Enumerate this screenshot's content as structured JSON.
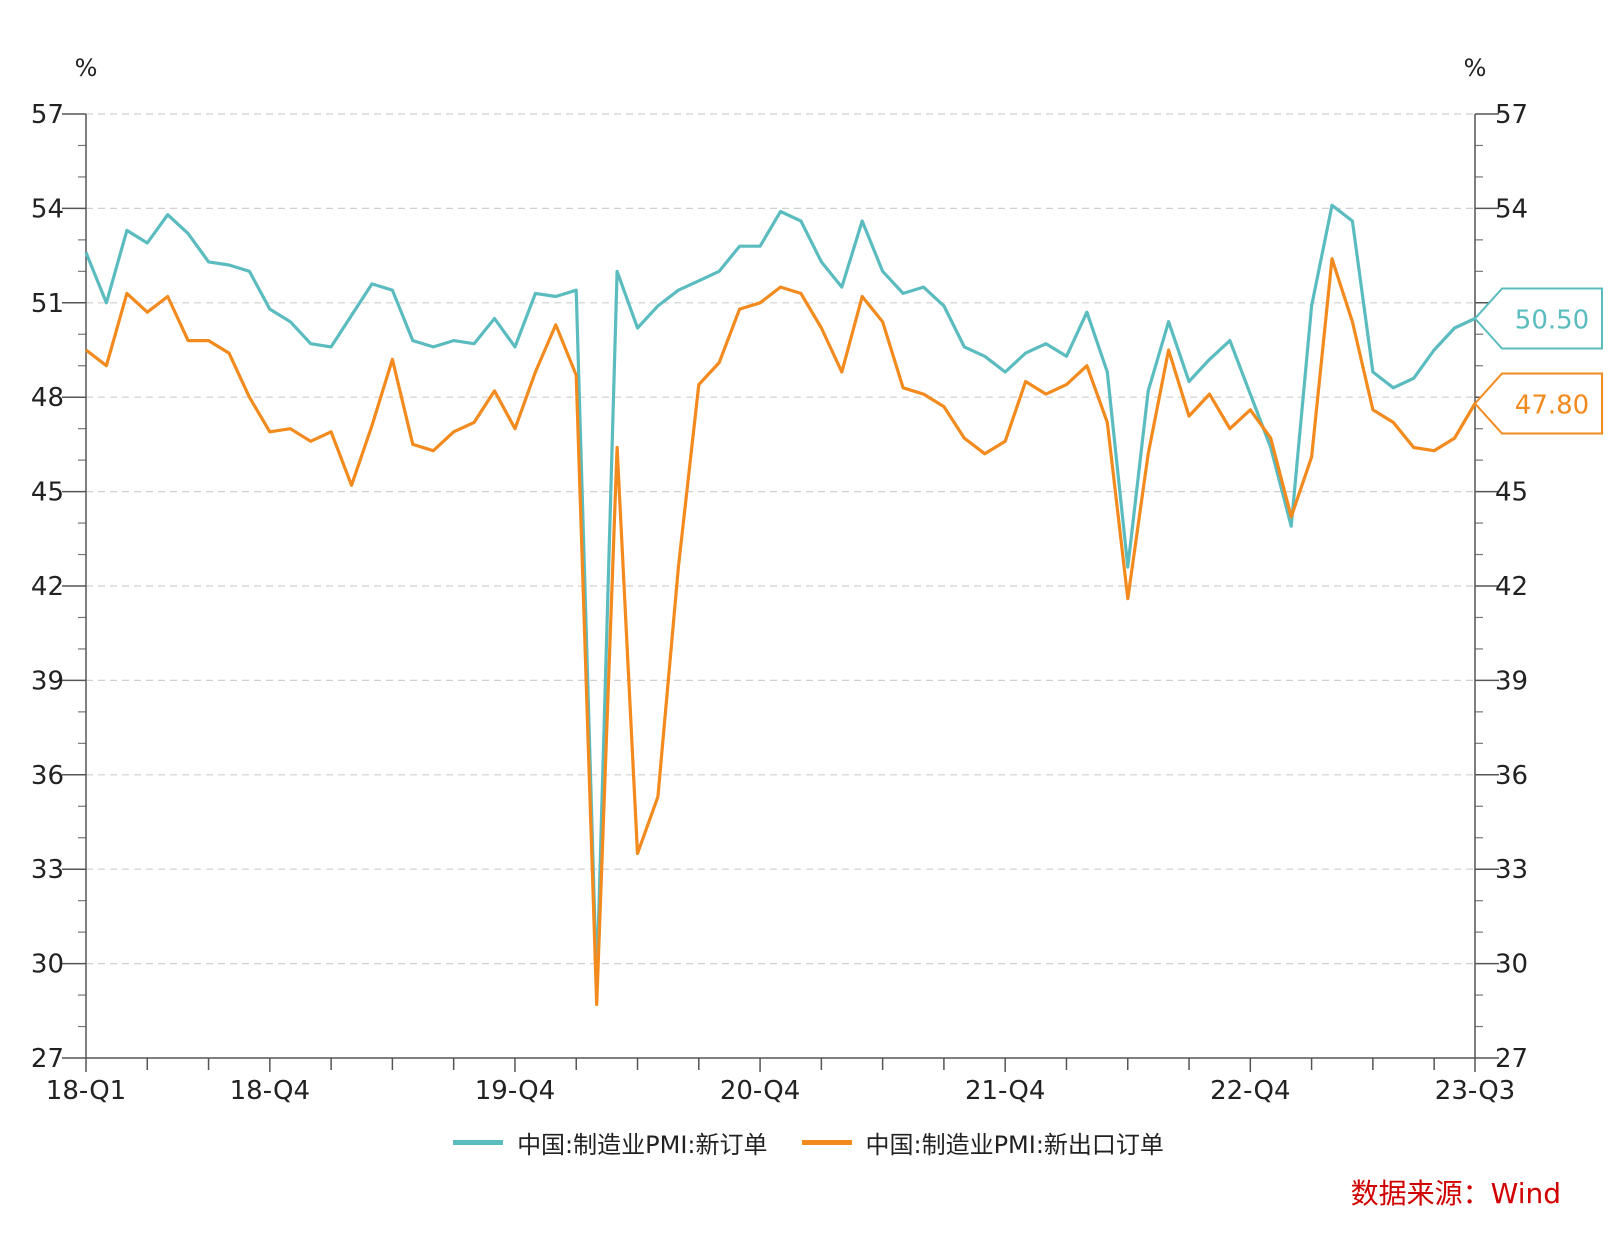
{
  "chart_data": {
    "type": "line",
    "x": [
      "2018-01",
      "2018-02",
      "2018-03",
      "2018-04",
      "2018-05",
      "2018-06",
      "2018-07",
      "2018-08",
      "2018-09",
      "2018-10",
      "2018-11",
      "2018-12",
      "2019-01",
      "2019-02",
      "2019-03",
      "2019-04",
      "2019-05",
      "2019-06",
      "2019-07",
      "2019-08",
      "2019-09",
      "2019-10",
      "2019-11",
      "2019-12",
      "2020-01",
      "2020-02",
      "2020-03",
      "2020-04",
      "2020-05",
      "2020-06",
      "2020-07",
      "2020-08",
      "2020-09",
      "2020-10",
      "2020-11",
      "2020-12",
      "2021-01",
      "2021-02",
      "2021-03",
      "2021-04",
      "2021-05",
      "2021-06",
      "2021-07",
      "2021-08",
      "2021-09",
      "2021-10",
      "2021-11",
      "2021-12",
      "2022-01",
      "2022-02",
      "2022-03",
      "2022-04",
      "2022-05",
      "2022-06",
      "2022-07",
      "2022-08",
      "2022-09",
      "2022-10",
      "2022-11",
      "2022-12",
      "2023-01",
      "2023-02",
      "2023-03",
      "2023-04",
      "2023-05",
      "2023-06",
      "2023-07",
      "2023-08",
      "2023-09"
    ],
    "x_tick_labels": [
      "18-Q1",
      "18-Q4",
      "19-Q4",
      "20-Q4",
      "21-Q4",
      "22-Q4",
      "23-Q3"
    ],
    "y_ticks": [
      "57",
      "54",
      "51",
      "48",
      "45",
      "42",
      "39",
      "36",
      "33",
      "30",
      "27"
    ],
    "y_unit_left": "%",
    "y_unit_right": "%",
    "ylim": [
      27,
      57
    ],
    "grid": true,
    "legend_placement": "bottom",
    "series": [
      {
        "name": "中国:制造业PMI:新订单",
        "color": "#5bbcc0",
        "end_label": "50.50",
        "values": [
          52.6,
          51.0,
          53.3,
          52.9,
          53.8,
          53.2,
          52.3,
          52.2,
          52.0,
          50.8,
          50.4,
          49.7,
          49.6,
          50.6,
          51.6,
          51.4,
          49.8,
          49.6,
          49.8,
          49.7,
          50.5,
          49.6,
          51.3,
          51.2,
          51.4,
          29.3,
          52.0,
          50.2,
          50.9,
          51.4,
          51.7,
          52.0,
          52.8,
          52.8,
          53.9,
          53.6,
          52.3,
          51.5,
          53.6,
          52.0,
          51.3,
          51.5,
          50.9,
          49.6,
          49.3,
          48.8,
          49.4,
          49.7,
          49.3,
          50.7,
          48.8,
          42.6,
          48.2,
          50.4,
          48.5,
          49.2,
          49.8,
          48.1,
          46.4,
          43.9,
          50.9,
          54.1,
          53.6,
          48.8,
          48.3,
          48.6,
          49.5,
          50.2,
          50.5
        ]
      },
      {
        "name": "中国:制造业PMI:新出口订单",
        "color": "#f28a1e",
        "end_label": "47.80",
        "values": [
          49.5,
          49.0,
          51.3,
          50.7,
          51.2,
          49.8,
          49.8,
          49.4,
          48.0,
          46.9,
          47.0,
          46.6,
          46.9,
          45.2,
          47.1,
          49.2,
          46.5,
          46.3,
          46.9,
          47.2,
          48.2,
          47.0,
          48.8,
          50.3,
          48.7,
          28.7,
          46.4,
          33.5,
          35.3,
          42.6,
          48.4,
          49.1,
          50.8,
          51.0,
          51.5,
          51.3,
          50.2,
          48.8,
          51.2,
          50.4,
          48.3,
          48.1,
          47.7,
          46.7,
          46.2,
          46.6,
          48.5,
          48.1,
          48.4,
          49.0,
          47.2,
          41.6,
          46.2,
          49.5,
          47.4,
          48.1,
          47.0,
          47.6,
          46.7,
          44.2,
          46.1,
          52.4,
          50.4,
          47.6,
          47.2,
          46.4,
          46.3,
          46.7,
          47.8
        ]
      }
    ]
  },
  "source": "数据来源：Wind"
}
